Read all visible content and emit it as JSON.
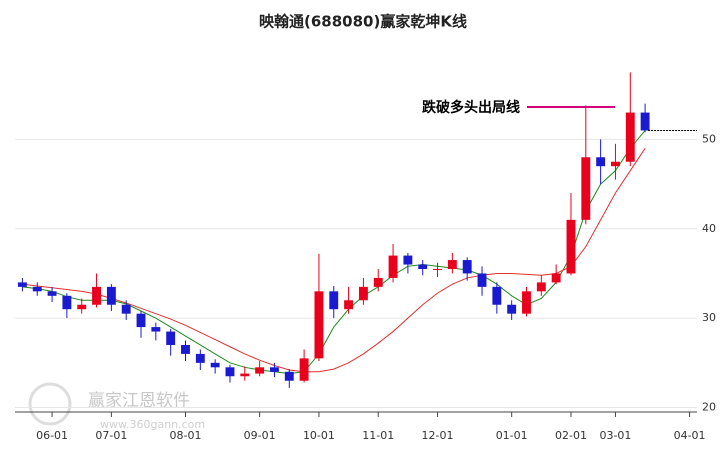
{
  "chart_data": {
    "type": "candlestick",
    "title": "映翰通(688080)赢家乾坤K线",
    "categories": [
      null,
      null,
      "06-01",
      null,
      null,
      null,
      "07-01",
      null,
      null,
      null,
      null,
      "08-01",
      null,
      null,
      null,
      null,
      "09-01",
      null,
      null,
      null,
      "10-01",
      null,
      null,
      null,
      "11-01",
      null,
      null,
      null,
      "12-01",
      null,
      null,
      null,
      null,
      "01-01",
      null,
      null,
      null,
      "02-01",
      null,
      null,
      "03-01",
      null,
      null,
      null,
      null,
      "04-01"
    ],
    "open": [
      34,
      33.5,
      33,
      32.5,
      31,
      31.5,
      33.5,
      31.5,
      30.5,
      29,
      28.5,
      27,
      26,
      25,
      24.5,
      23.5,
      23.8,
      24.5,
      24,
      23,
      25.5,
      33,
      31,
      32,
      33.5,
      34.5,
      37,
      36,
      35.5,
      35.5,
      36.5,
      35,
      33.5,
      31.5,
      30.5,
      33,
      34,
      35,
      41,
      48,
      47,
      47.5,
      53,
      null,
      null,
      null
    ],
    "high": [
      34.5,
      34,
      33.5,
      32.8,
      32.2,
      35,
      33.8,
      32,
      30.8,
      29.5,
      28.8,
      27.5,
      26.5,
      25.4,
      24.8,
      24.6,
      25.2,
      25,
      24.3,
      26.5,
      37.2,
      33.6,
      33.5,
      34.5,
      35.5,
      38.3,
      37.3,
      36.5,
      36.2,
      37.3,
      36.8,
      35.8,
      34,
      32,
      33.5,
      34.8,
      36,
      44,
      53.8,
      50,
      49.5,
      57.5,
      54,
      null,
      null,
      null
    ],
    "low": [
      33,
      32.5,
      31.8,
      30,
      30.5,
      31.2,
      30.8,
      29.8,
      27.8,
      27.5,
      25.8,
      25.2,
      24.2,
      23.8,
      22.8,
      23,
      23.5,
      23.4,
      22.2,
      22.8,
      25.2,
      30,
      30.5,
      31.5,
      33,
      34,
      35,
      34.8,
      34.6,
      35,
      34.2,
      32.5,
      30.5,
      29.8,
      30.2,
      32.5,
      33.8,
      34.8,
      40.5,
      45,
      45.5,
      47,
      50.8,
      null,
      null,
      null
    ],
    "close": [
      33.5,
      33,
      32.5,
      31,
      31.5,
      33.5,
      31.5,
      30.5,
      29,
      28.5,
      27,
      26,
      25,
      24.5,
      23.5,
      23.8,
      24.5,
      24,
      23,
      25.5,
      33,
      31,
      32,
      33.5,
      34.5,
      37,
      36,
      35.5,
      35.5,
      36.5,
      35,
      33.5,
      31.5,
      30.5,
      33,
      34,
      35,
      41,
      48,
      47,
      47.5,
      53,
      51,
      null,
      null,
      null
    ],
    "up_color": "#e8001c",
    "down_color": "#1a1ad0",
    "moving_averages": [
      {
        "color": "#1f8a1f",
        "values": [
          33.5,
          33.3,
          33,
          32.4,
          32,
          32,
          32,
          31.6,
          30.8,
          30,
          29,
          28,
          27,
          26,
          25,
          24.5,
          24.2,
          24,
          23.8,
          24,
          26,
          29,
          31,
          32.5,
          33.5,
          34.8,
          35.8,
          36,
          35.8,
          35.6,
          35.4,
          34.8,
          33.8,
          32.5,
          31.5,
          32.2,
          34,
          37,
          42,
          45,
          46.5,
          49,
          51,
          null,
          null,
          null
        ]
      },
      {
        "color": "#e03030",
        "values": [
          33.8,
          33.6,
          33.4,
          33.2,
          33,
          32.7,
          32.2,
          31.7,
          31.1,
          30.5,
          29.9,
          29.2,
          28.4,
          27.6,
          26.8,
          26,
          25.3,
          24.7,
          24.2,
          24,
          24,
          24.3,
          25,
          26,
          27.2,
          28.5,
          30,
          31.5,
          32.8,
          33.8,
          34.5,
          34.8,
          35,
          35,
          34.9,
          34.8,
          35,
          35.8,
          38,
          41,
          44,
          46.5,
          49,
          null,
          null,
          null
        ]
      }
    ],
    "annotation": "跌破多头出局线",
    "annotation_color": "#d4007a",
    "watermark": "赢家江恩软件",
    "watermark_url": "www.360gann.com",
    "ylim": [
      19.5,
      60
    ],
    "yticks": [
      20,
      30,
      40,
      50
    ],
    "grid": true
  }
}
